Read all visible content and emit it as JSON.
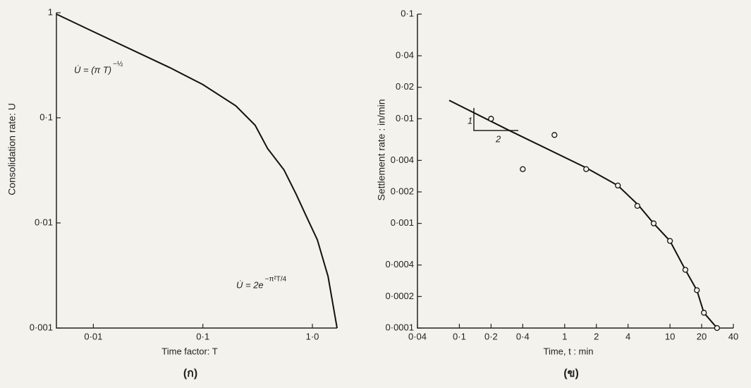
{
  "chart_data": [
    {
      "type": "line",
      "caption": "(ก)",
      "x_label": "Time factor: T",
      "y_label": "Consolidation rate: U",
      "log_scale": true,
      "xlim": [
        0.0046,
        1.68
      ],
      "ylim": [
        0.001,
        1
      ],
      "xticks": [
        {
          "value": 0.01,
          "label": "0·01"
        },
        {
          "value": 0.1,
          "label": "0·1"
        },
        {
          "value": 1,
          "label": "1·0"
        }
      ],
      "yticks": [
        {
          "value": 0.001,
          "label": "0·001"
        },
        {
          "value": 0.01,
          "label": "0·01"
        },
        {
          "value": 0.1,
          "label": "0·1"
        },
        1
      ],
      "series": [
        {
          "type": "line",
          "color": "#111",
          "x": [
            0.0046,
            0.01,
            0.05,
            0.1,
            0.2,
            0.3,
            0.39,
            0.55,
            0.71,
            0.9,
            1.11,
            1.39,
            1.68
          ],
          "values": [
            0.97,
            0.66,
            0.3,
            0.207,
            0.13,
            0.085,
            0.051,
            0.032,
            0.0188,
            0.011,
            0.0069,
            0.0031,
            0.001
          ]
        }
      ],
      "annotations": [
        {
          "text": "U̇ = (π T)",
          "sup": "−½"
        },
        {
          "text": "U̇ = 2e",
          "sup": "−π²T/4"
        }
      ]
    },
    {
      "type": "scatter",
      "caption": "(ข)",
      "x_label": "Time, t : min",
      "y_label": "Settlement rate : in/min",
      "log_scale": true,
      "xlim": [
        0.04,
        40
      ],
      "ylim": [
        0.0001,
        0.1
      ],
      "xticks": [
        {
          "value": 0.04,
          "label": "0·04"
        },
        {
          "value": 0.1,
          "label": "0·1"
        },
        {
          "value": 0.2,
          "label": "0·2"
        },
        {
          "value": 0.4,
          "label": "0·4"
        },
        1,
        2,
        4,
        10,
        20,
        40
      ],
      "yticks": [
        {
          "value": 0.0001,
          "label": "0·0001"
        },
        {
          "value": 0.0002,
          "label": "0·0002"
        },
        {
          "value": 0.0004,
          "label": "0·0004"
        },
        {
          "value": 0.001,
          "label": "0·001"
        },
        {
          "value": 0.002,
          "label": "0·002"
        },
        {
          "value": 0.004,
          "label": "0·004"
        },
        {
          "value": 0.01,
          "label": "0·01"
        },
        {
          "value": 0.02,
          "label": "0·02"
        },
        {
          "value": 0.04,
          "label": "0·04"
        },
        {
          "value": 0.1,
          "label": "0·1"
        }
      ],
      "series": [
        {
          "type": "line",
          "color": "#111",
          "x": [
            0.08,
            0.3,
            1.6,
            3.2,
            5,
            7,
            10,
            14,
            18,
            21,
            28
          ],
          "values": [
            0.015,
            0.0077,
            0.0034,
            0.0023,
            0.0015,
            0.001,
            0.00068,
            0.00036,
            0.00023,
            0.00014,
            0.0001
          ]
        },
        {
          "type": "scatter",
          "color": "#111",
          "x": [
            0.2,
            0.4,
            0.8,
            1.6,
            3.2,
            4.9,
            7,
            10,
            14,
            18,
            21,
            28
          ],
          "values": [
            0.01,
            0.0033,
            0.007,
            0.0033,
            0.0023,
            0.00147,
            0.001,
            0.00068,
            0.00036,
            0.00023,
            0.00014,
            0.0001
          ]
        }
      ],
      "annotations": [
        {
          "text": "1"
        },
        {
          "text": "2"
        }
      ]
    }
  ]
}
